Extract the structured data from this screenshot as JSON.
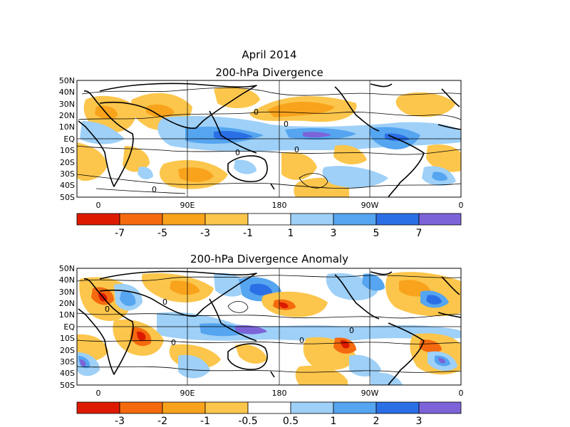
{
  "header": {
    "title": "April 2014"
  },
  "colors": {
    "neg4": "#dd1a00",
    "neg3": "#f56a0e",
    "neg2": "#f9a31c",
    "neg1": "#fcc64c",
    "zero": "#ffffff",
    "pos1": "#9ed0f8",
    "pos2": "#55a5f0",
    "pos3": "#2b6fe6",
    "pos4": "#7c64d8"
  },
  "panels": [
    {
      "title": "200-hPa Divergence",
      "lat_labels": [
        "50N",
        "40N",
        "30N",
        "20N",
        "10N",
        "EQ",
        "10S",
        "20S",
        "30S",
        "40S",
        "50S"
      ],
      "lon_labels": [
        "0",
        "90E",
        "180",
        "90W",
        "0"
      ],
      "colorbar_labels": [
        "-7",
        "-5",
        "-3",
        "-1",
        "1",
        "3",
        "5",
        "7"
      ],
      "contour_label": "0"
    },
    {
      "title": "200-hPa Divergence Anomaly",
      "lat_labels": [
        "50N",
        "40N",
        "30N",
        "20N",
        "10N",
        "EQ",
        "10S",
        "20S",
        "30S",
        "40S",
        "50S"
      ],
      "lon_labels": [
        "0",
        "90E",
        "180",
        "90W",
        "0"
      ],
      "colorbar_labels": [
        "-3",
        "-2",
        "-1",
        "-0.5",
        "0.5",
        "1",
        "2",
        "3"
      ],
      "contour_label": "0"
    }
  ]
}
